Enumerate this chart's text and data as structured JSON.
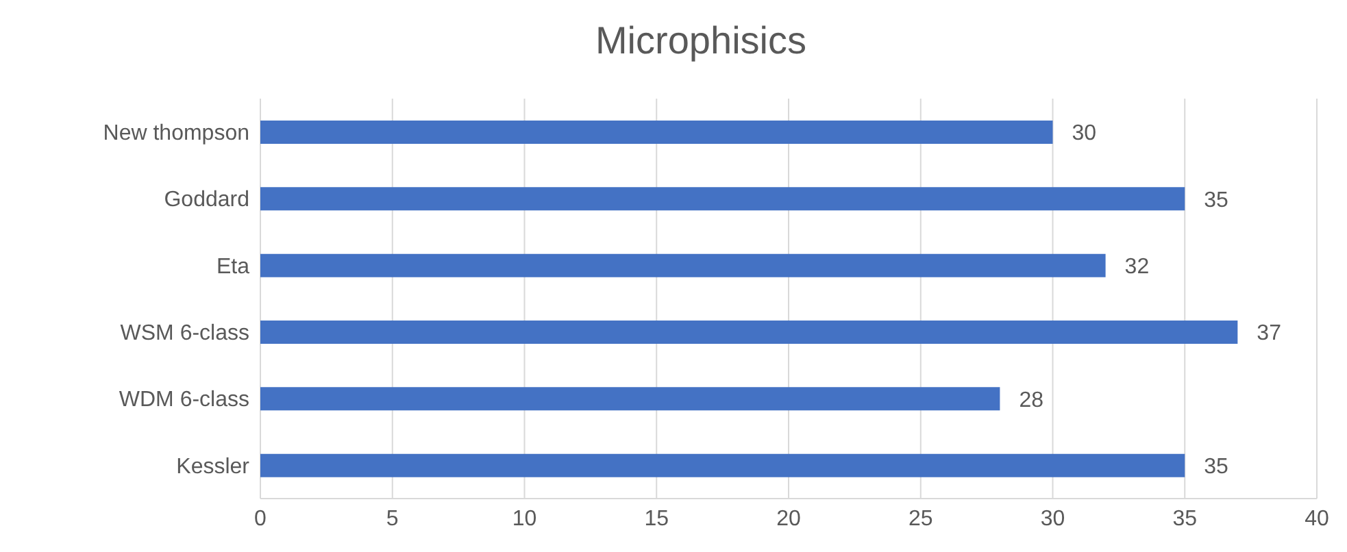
{
  "chart_data": {
    "type": "bar",
    "orientation": "horizontal",
    "title": "Microphisics",
    "categories": [
      "New thompson",
      "Goddard",
      "Eta",
      "WSM 6-class",
      "WDM 6-class",
      "Kessler"
    ],
    "values": [
      30,
      35,
      32,
      37,
      28,
      35
    ],
    "color": "#4472c4",
    "xlim": [
      0,
      40
    ],
    "xticks": [
      0,
      5,
      10,
      15,
      20,
      25,
      30,
      35,
      40
    ],
    "grid": "x",
    "data_labels": true
  }
}
